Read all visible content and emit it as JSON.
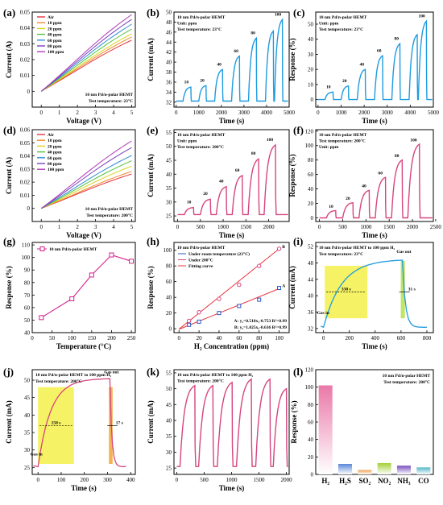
{
  "chart_data": [
    {
      "id": "a",
      "panel_label": "(a)",
      "type": "line",
      "xlabel": "Voltage (V)",
      "ylabel": "Current (A)",
      "xlim": [
        -0.5,
        5.2
      ],
      "ylim": [
        -0.01,
        0.05
      ],
      "xticks": [
        0,
        1,
        2,
        3,
        4,
        5
      ],
      "yticks": [
        0.0,
        0.01,
        0.02,
        0.03,
        0.04,
        0.05
      ],
      "annotations": [
        "10 nm Pd/n-polar HEMT",
        "Test temperature: 23°C"
      ],
      "series": [
        {
          "name": "Air",
          "color": "#e8343e",
          "x": [
            0,
            5
          ],
          "y": [
            0,
            0.032
          ]
        },
        {
          "name": "10 ppm",
          "color": "#f08a2c",
          "x": [
            0,
            5
          ],
          "y": [
            0,
            0.034
          ]
        },
        {
          "name": "20 ppm",
          "color": "#d7d41e",
          "x": [
            0,
            5
          ],
          "y": [
            0,
            0.036
          ]
        },
        {
          "name": "40 ppm",
          "color": "#54c23a",
          "x": [
            0,
            5
          ],
          "y": [
            0,
            0.039
          ]
        },
        {
          "name": "60 ppm",
          "color": "#2f8fd6",
          "x": [
            0,
            5
          ],
          "y": [
            0,
            0.042
          ]
        },
        {
          "name": "80 ppm",
          "color": "#7a3fc0",
          "x": [
            0,
            5
          ],
          "y": [
            0,
            0.045
          ]
        },
        {
          "name": "100 ppm",
          "color": "#b03ab5",
          "x": [
            0,
            5
          ],
          "y": [
            0,
            0.048
          ]
        }
      ]
    },
    {
      "id": "b",
      "panel_label": "(b)",
      "type": "line",
      "xlabel": "Time (s)",
      "ylabel": "Current (mA)",
      "xlim": [
        -100,
        5000
      ],
      "ylim": [
        31,
        50
      ],
      "xticks": [
        0,
        1000,
        2000,
        3000,
        4000,
        5000
      ],
      "yticks": [
        32,
        34,
        36,
        38,
        40,
        42,
        44,
        46,
        48,
        50
      ],
      "annotations": [
        "10 nm Pd/n-polar HEMT",
        "Unit: ppm",
        "Test temperature: 23°C"
      ],
      "series": [
        {
          "color": "#1e9be0",
          "base": 32.2,
          "pulses": [
            [
              300,
              650,
              35.0
            ],
            [
              1000,
              1320,
              35.3
            ],
            [
              1700,
              2050,
              38.5
            ],
            [
              2450,
              2800,
              41.2
            ],
            [
              3200,
              3550,
              44.8
            ],
            [
              3950,
              4300,
              46.2
            ],
            [
              4350,
              4700,
              48.5
            ]
          ]
        }
      ],
      "data_labels": [
        {
          "x": 450,
          "y": 35.6,
          "text": "10"
        },
        {
          "x": 1150,
          "y": 35.9,
          "text": "20"
        },
        {
          "x": 1900,
          "y": 39.1,
          "text": "40"
        },
        {
          "x": 2650,
          "y": 41.8,
          "text": "60"
        },
        {
          "x": 3400,
          "y": 45.4,
          "text": "80"
        },
        {
          "x": 4500,
          "y": 49.1,
          "text": "100"
        }
      ]
    },
    {
      "id": "c",
      "panel_label": "(c)",
      "type": "line",
      "xlabel": "Time (s)",
      "ylabel": "Response (%)",
      "xlim": [
        -100,
        5000
      ],
      "ylim": [
        -5,
        58
      ],
      "xticks": [
        0,
        1000,
        2000,
        3000,
        4000,
        5000
      ],
      "yticks": [
        0,
        10,
        20,
        30,
        40,
        50
      ],
      "annotations": [
        "10 nm Pd/n-polar HEMT",
        "Unit: ppm",
        "Test temperature: 23°C"
      ],
      "series": [
        {
          "color": "#1e9be0",
          "base": 0,
          "pulses": [
            [
              300,
              650,
              5
            ],
            [
              1000,
              1320,
              9
            ],
            [
              1700,
              2050,
              20
            ],
            [
              2450,
              2800,
              29
            ],
            [
              3200,
              3550,
              37
            ],
            [
              3950,
              4300,
              43
            ],
            [
              4350,
              4700,
              52
            ]
          ]
        }
      ],
      "data_labels": [
        {
          "x": 450,
          "y": 7,
          "text": "10"
        },
        {
          "x": 1150,
          "y": 11,
          "text": "20"
        },
        {
          "x": 1900,
          "y": 22,
          "text": "40"
        },
        {
          "x": 2650,
          "y": 31,
          "text": "60"
        },
        {
          "x": 3400,
          "y": 39,
          "text": "80"
        },
        {
          "x": 4500,
          "y": 54,
          "text": "100"
        }
      ]
    },
    {
      "id": "d",
      "panel_label": "(d)",
      "type": "line",
      "xlabel": "Voltage (V)",
      "ylabel": "Current (A)",
      "xlim": [
        -0.5,
        5.2
      ],
      "ylim": [
        -0.01,
        0.06
      ],
      "xticks": [
        0,
        1,
        2,
        3,
        4,
        5
      ],
      "yticks": [
        0.0,
        0.01,
        0.02,
        0.03,
        0.04,
        0.05,
        0.06
      ],
      "annotations": [
        "10 nm Pd/n-polar HEMT",
        "Test temperature: 200°C"
      ],
      "series": [
        {
          "name": "Air",
          "color": "#e8343e",
          "x": [
            0,
            5
          ],
          "y": [
            0,
            0.026
          ]
        },
        {
          "name": "10 ppm",
          "color": "#f08a2c",
          "x": [
            0,
            5
          ],
          "y": [
            0,
            0.028
          ]
        },
        {
          "name": "20 ppm",
          "color": "#d7d41e",
          "x": [
            0,
            5
          ],
          "y": [
            0,
            0.032
          ]
        },
        {
          "name": "40 ppm",
          "color": "#54c23a",
          "x": [
            0,
            5
          ],
          "y": [
            0,
            0.036
          ]
        },
        {
          "name": "60 ppm",
          "color": "#2f8fd6",
          "x": [
            0,
            5
          ],
          "y": [
            0,
            0.04
          ]
        },
        {
          "name": "80 ppm",
          "color": "#7a3fc0",
          "x": [
            0,
            5
          ],
          "y": [
            0,
            0.046
          ]
        },
        {
          "name": "100 ppm",
          "color": "#b03ab5",
          "x": [
            0,
            5
          ],
          "y": [
            0,
            0.051
          ]
        }
      ]
    },
    {
      "id": "e",
      "panel_label": "(e)",
      "type": "line",
      "xlabel": "Time (s)",
      "ylabel": "Current (mA)",
      "xlim": [
        -80,
        2450
      ],
      "ylim": [
        23,
        56
      ],
      "xticks": [
        0,
        500,
        1000,
        1500,
        2000
      ],
      "yticks": [
        25,
        30,
        35,
        40,
        45,
        50,
        55
      ],
      "annotations": [
        "10 nm Pd/n-polar HEMT",
        "Unit: ppm",
        "Test temperature: 200°C"
      ],
      "series": [
        {
          "color": "#d6457f",
          "base": 25.5,
          "pulses": [
            [
              150,
              350,
              28
            ],
            [
              500,
              720,
              31
            ],
            [
              850,
              1070,
              35.5
            ],
            [
              1200,
              1420,
              39.5
            ],
            [
              1550,
              1780,
              45.5
            ],
            [
              1900,
              2150,
              50.5
            ]
          ]
        }
      ],
      "data_labels": [
        {
          "x": 250,
          "y": 29.2,
          "text": "10"
        },
        {
          "x": 610,
          "y": 32.2,
          "text": "20"
        },
        {
          "x": 960,
          "y": 36.7,
          "text": "40"
        },
        {
          "x": 1310,
          "y": 40.7,
          "text": "60"
        },
        {
          "x": 1665,
          "y": 46.7,
          "text": "80"
        },
        {
          "x": 2025,
          "y": 51.7,
          "text": "100"
        }
      ]
    },
    {
      "id": "f",
      "panel_label": "(f)",
      "type": "line",
      "xlabel": "Time (s)",
      "ylabel": "Response (%)",
      "xlim": [
        -80,
        2450
      ],
      "ylim": [
        -5,
        122
      ],
      "xticks": [
        0,
        500,
        1000,
        1500,
        2000,
        2500
      ],
      "yticks": [
        0,
        20,
        40,
        60,
        80,
        100,
        120
      ],
      "annotations": [
        "10 nm Pd/n-polar HEMT",
        "Test temperature: 200°C",
        "Unit: ppm"
      ],
      "series": [
        {
          "color": "#d6457f",
          "base": 0,
          "pulses": [
            [
              150,
              350,
              10
            ],
            [
              500,
              720,
              21
            ],
            [
              850,
              1070,
              38
            ],
            [
              1200,
              1420,
              56
            ],
            [
              1550,
              1780,
              80
            ],
            [
              1900,
              2150,
              102
            ]
          ]
        }
      ],
      "data_labels": [
        {
          "x": 250,
          "y": 13,
          "text": "10"
        },
        {
          "x": 610,
          "y": 24,
          "text": "20"
        },
        {
          "x": 960,
          "y": 41,
          "text": "40"
        },
        {
          "x": 1310,
          "y": 59,
          "text": "60"
        },
        {
          "x": 1665,
          "y": 83,
          "text": "80"
        },
        {
          "x": 2025,
          "y": 105,
          "text": "100"
        }
      ]
    },
    {
      "id": "g",
      "panel_label": "(g)",
      "type": "line",
      "xlabel": "Temperature (°C)",
      "ylabel": "Response (%)",
      "xlim": [
        0,
        260
      ],
      "ylim": [
        40,
        112
      ],
      "xticks": [
        0,
        50,
        100,
        150,
        200,
        250
      ],
      "yticks": [
        40,
        50,
        60,
        70,
        80,
        90,
        100,
        110
      ],
      "series": [
        {
          "name": "10 nm Pd/n-polar HEMT",
          "color": "#d61f8e",
          "x": [
            23,
            100,
            150,
            200,
            250
          ],
          "y": [
            52,
            67,
            86,
            102,
            97
          ]
        }
      ]
    },
    {
      "id": "h",
      "panel_label": "(h)",
      "type": "scatter",
      "xlabel": "H₂ Concentration (ppm)",
      "ylabel": "Response (%)",
      "xlim": [
        -5,
        110
      ],
      "ylim": [
        -5,
        110
      ],
      "xticks": [
        0,
        20,
        40,
        60,
        80,
        100
      ],
      "yticks": [
        0,
        20,
        40,
        60,
        80,
        100
      ],
      "annotations": [
        "10 nm Pd/n-polar HEMT",
        "A: y₁=0.518x₁-0.753 R²=0.99",
        "B: y₂=1.025x₂-0.636 R²=0.99",
        "A",
        "B"
      ],
      "legend": [
        "Under room temperature (23°C)",
        "Under 200°C",
        "Fitting curve"
      ],
      "series": [
        {
          "name": "Under room temperature (23°C)",
          "color": "#2b57c7",
          "x": [
            10,
            20,
            40,
            60,
            80,
            100
          ],
          "y": [
            5,
            9,
            20,
            29,
            37,
            52
          ]
        },
        {
          "name": "Under 200°C",
          "color": "#d6457f",
          "x": [
            10,
            20,
            40,
            60,
            80,
            100
          ],
          "y": [
            10,
            21,
            38,
            56,
            80,
            102
          ]
        }
      ],
      "fits": [
        {
          "slope": 0.518,
          "intercept": -0.753,
          "color": "#e8343e"
        },
        {
          "slope": 1.025,
          "intercept": -0.636,
          "color": "#e8343e"
        }
      ]
    },
    {
      "id": "i",
      "panel_label": "(i)",
      "type": "line",
      "xlabel": "Time (s)",
      "ylabel": "Current (mA)",
      "xlim": [
        -60,
        850
      ],
      "ylim": [
        31,
        53
      ],
      "xticks": [
        0,
        200,
        400,
        600,
        800
      ],
      "yticks": [
        32,
        36,
        40,
        44,
        48,
        52
      ],
      "annotations": [
        "10 nm Pd/n-polar HEMT to 100 ppm H₂",
        "Test temperature: 23°C",
        "330 s",
        "31 s",
        "Gas in",
        "Gas out"
      ],
      "series": [
        {
          "color": "#1e9be0",
          "base": 32.3,
          "rise_start": 0,
          "rise_end": 610,
          "top": 48.9,
          "fall_end": 800,
          "tau": 140
        }
      ],
      "shade": {
        "x0": 10,
        "x1": 340,
        "y0": 34.5,
        "y1": 47.3,
        "color": "#f3f04a"
      },
      "shade2": {
        "x0": 598,
        "x1": 630,
        "y0": 34.5,
        "y1": 48.5,
        "color": "#b7e14a"
      }
    },
    {
      "id": "j",
      "panel_label": "(j)",
      "type": "line",
      "xlabel": "Time (s)",
      "ylabel": "Current (mA)",
      "xlim": [
        -25,
        420
      ],
      "ylim": [
        23,
        53
      ],
      "xticks": [
        0,
        100,
        200,
        300,
        400
      ],
      "yticks": [
        25,
        30,
        35,
        40,
        45,
        50
      ],
      "annotations": [
        "10 nm Pd/n-polar HEMT to 100 ppm H₂",
        "Test temperature: 200°C",
        "150 s",
        "17 s",
        "Gas in",
        "Gas out"
      ],
      "series": [
        {
          "color": "#d6457f",
          "base": 25.2,
          "rise_start": 0,
          "rise_end": 310,
          "top": 50.5,
          "fall_end": 380,
          "tau": 55
        }
      ],
      "shade": {
        "x0": 0,
        "x1": 155,
        "y0": 26,
        "y1": 48,
        "color": "#f3f04a"
      },
      "shade2": {
        "x0": 306,
        "x1": 322,
        "y0": 26,
        "y1": 48,
        "color": "#f0a830"
      }
    },
    {
      "id": "k",
      "panel_label": "(k)",
      "type": "line",
      "xlabel": "Time (s)",
      "ylabel": "Current (mA)",
      "xlim": [
        -50,
        2050
      ],
      "ylim": [
        23,
        56
      ],
      "xticks": [
        0,
        500,
        1000,
        1500,
        2000
      ],
      "yticks": [
        25,
        30,
        35,
        40,
        45,
        50,
        55
      ],
      "annotations": [
        "10 nm Pd/n-polar HEMT to 100 ppm H₂",
        "Test temperature: 200°C"
      ],
      "series": [
        {
          "color": "#d6457f",
          "base": 25.5,
          "pulses": [
            [
              60,
              330,
              51
            ],
            [
              400,
              660,
              51
            ],
            [
              740,
              1010,
              52
            ],
            [
              1090,
              1360,
              53
            ],
            [
              1440,
              1700,
              53
            ],
            [
              1760,
              2000,
              50
            ]
          ]
        }
      ]
    },
    {
      "id": "l",
      "panel_label": "(l)",
      "type": "bar",
      "ylabel": "Response (%)",
      "ylim": [
        0,
        120
      ],
      "yticks": [
        0,
        20,
        40,
        60,
        80,
        100,
        120
      ],
      "annotations": [
        "10 nm Pd/n-polar HEMT",
        "Test temperature: 200°C"
      ],
      "categories": [
        "H₂",
        "H₂S",
        "SO₂",
        "NO₂",
        "NH₃",
        "CO"
      ],
      "values": [
        102,
        12,
        5,
        13,
        10,
        8
      ],
      "colors": [
        "#ea78a8",
        "#5a88d8",
        "#f0a050",
        "#a4cf38",
        "#7a4ec0",
        "#55b8c8"
      ]
    }
  ]
}
